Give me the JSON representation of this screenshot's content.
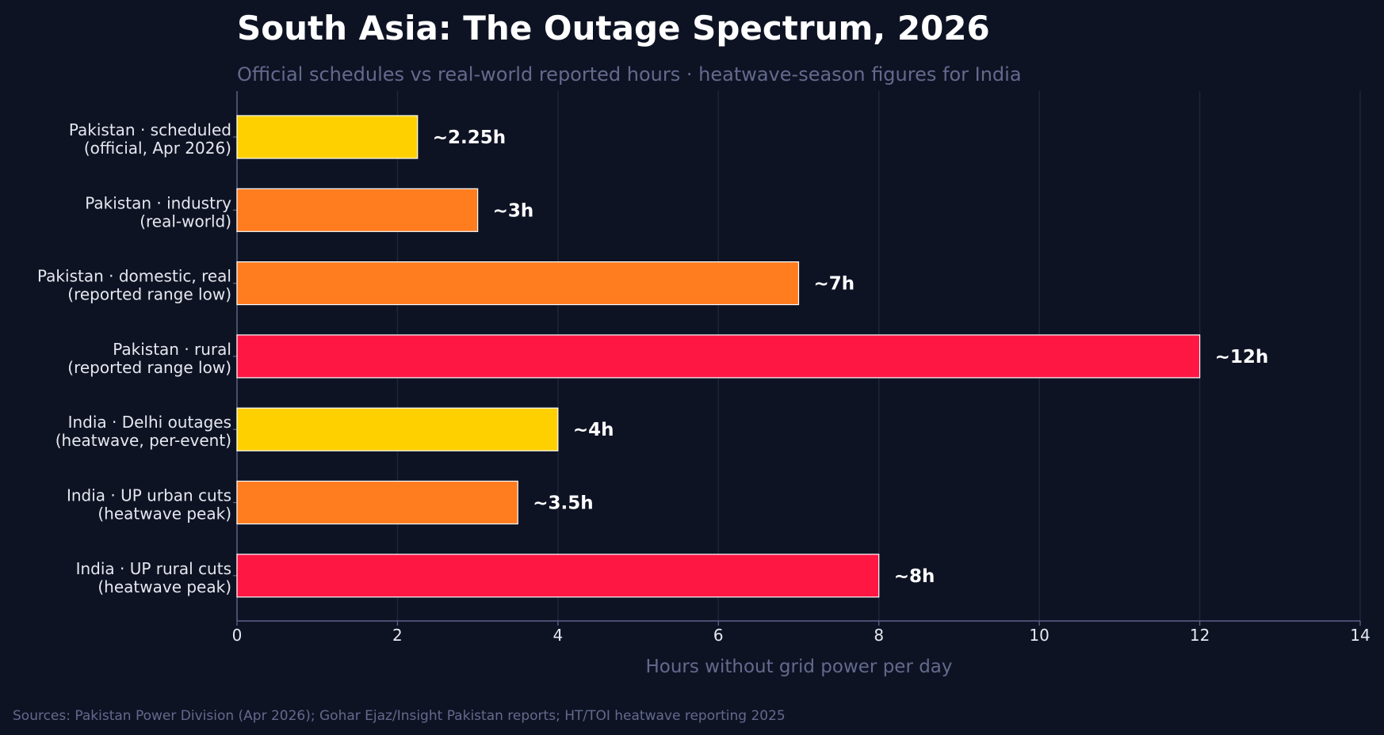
{
  "chart_data": {
    "type": "bar",
    "orientation": "horizontal",
    "title": "South Asia: The Outage Spectrum, 2026",
    "subtitle": "Official schedules vs real-world reported hours · heatwave-season figures for India",
    "xlabel": "Hours without grid power per day",
    "ylabel": "",
    "xlim": [
      0,
      14
    ],
    "xticks": [
      "0",
      "2",
      "4",
      "6",
      "8",
      "10",
      "12",
      "14"
    ],
    "grid": "vertical",
    "categories": [
      [
        "Pakistan · scheduled",
        "(official, Apr 2026)"
      ],
      [
        "Pakistan · industry",
        "(real-world)"
      ],
      [
        "Pakistan · domestic, real",
        "(reported range low)"
      ],
      [
        "Pakistan · rural",
        "(reported range low)"
      ],
      [
        "India · Delhi outages",
        "(heatwave, per-event)"
      ],
      [
        "India · UP urban cuts",
        "(heatwave peak)"
      ],
      [
        "India · UP rural cuts",
        "(heatwave peak)"
      ]
    ],
    "values": [
      2.25,
      3,
      7,
      12,
      4,
      3.5,
      8
    ],
    "value_labels": [
      "~2.25h",
      "~3h",
      "~7h",
      "~12h",
      "~4h",
      "~3.5h",
      "~8h"
    ],
    "colors": [
      "#ffd000",
      "#ff7c1f",
      "#ff7c1f",
      "#ff1744",
      "#ffd000",
      "#ff7c1f",
      "#ff1744"
    ],
    "source": "Sources: Pakistan Power Division (Apr 2026); Gohar Ejaz/Insight Pakistan reports; HT/TOI heatwave reporting 2025"
  },
  "colors": {
    "background": "#0e1324",
    "axis": "#5a6186",
    "grid": "#1f2538",
    "bar_edge": "#ffffff",
    "muted_text": "#636a8c"
  }
}
